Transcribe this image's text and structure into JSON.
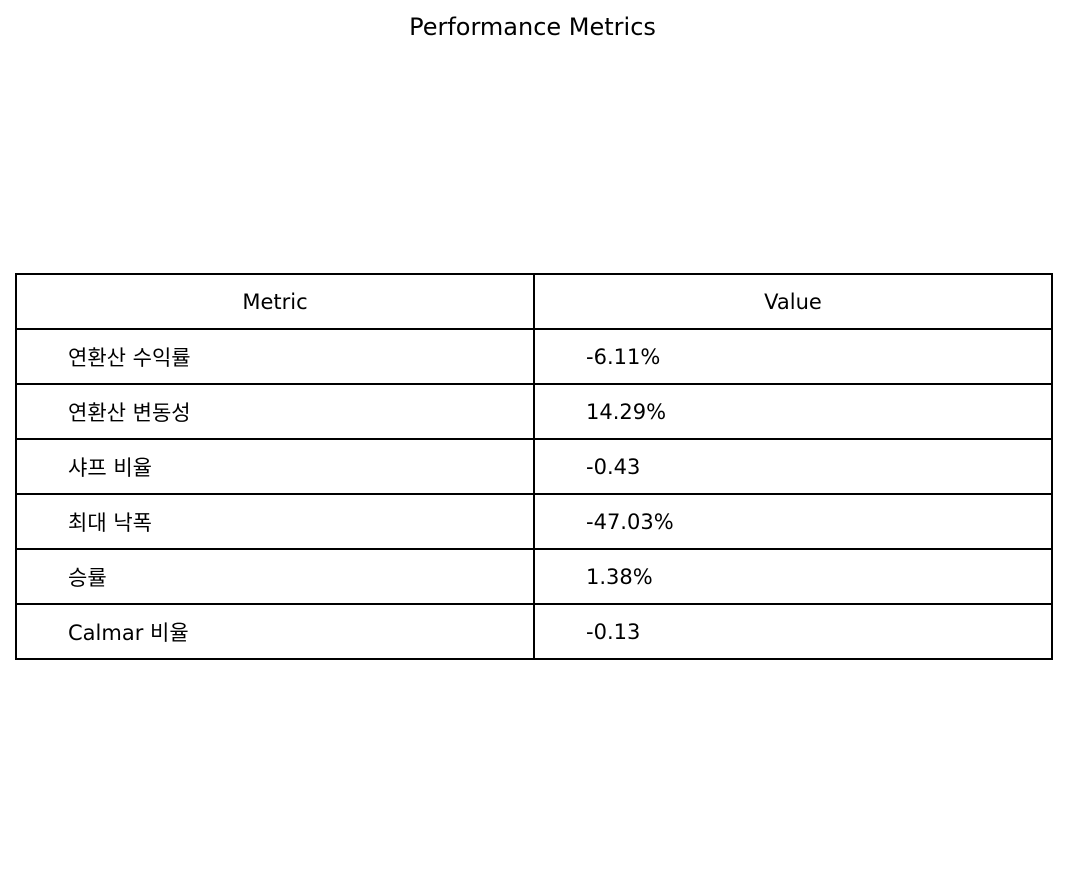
{
  "chart_data": {
    "type": "table",
    "title": "Performance Metrics",
    "columns": [
      "Metric",
      "Value"
    ],
    "rows": [
      [
        "연환산 수익률",
        "-6.11%"
      ],
      [
        "연환산 변동성",
        "14.29%"
      ],
      [
        "샤프 비율",
        "-0.43"
      ],
      [
        "최대 낙폭",
        "-47.03%"
      ],
      [
        "승률",
        "1.38%"
      ],
      [
        "Calmar 비율",
        "-0.13"
      ]
    ]
  }
}
